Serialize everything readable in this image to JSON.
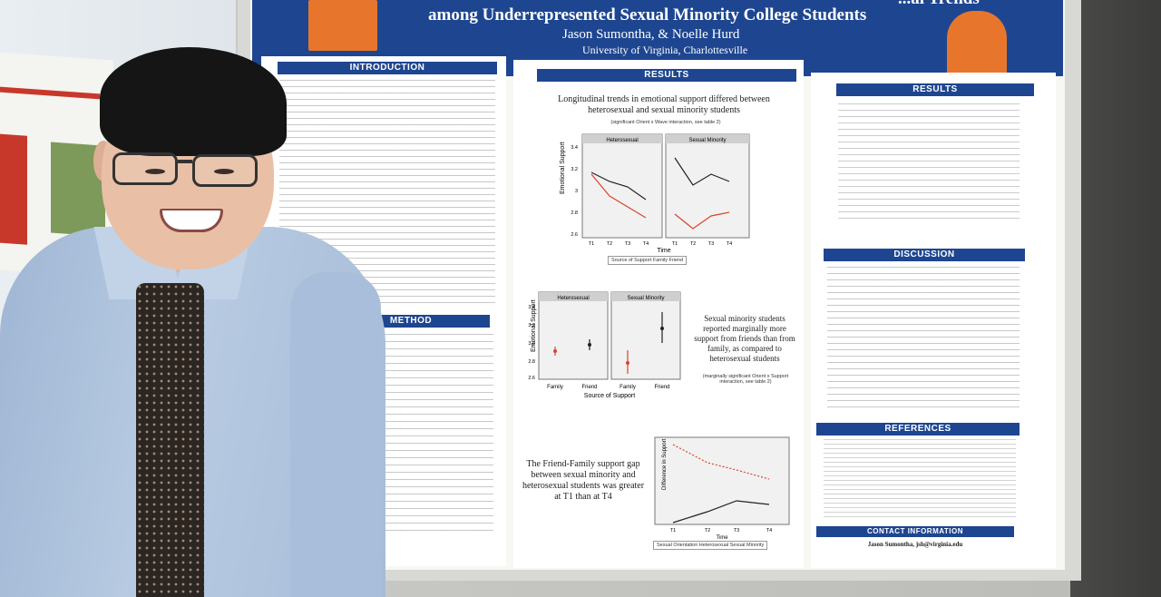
{
  "scene": {
    "description_tag": "photo-of-presenter-with-poster"
  },
  "poster": {
    "title": "among Underrepresented Sexual Minority College Students",
    "title_cut": "...al Trends",
    "authors": "Jason Sumontha, & Noelle Hurd",
    "affiliation": "University of Virginia, Charlottesville",
    "sections": {
      "introduction": "INTRODUCTION",
      "method": "METHOD",
      "results_mid": "RESULTS",
      "results_right": "RESULTS",
      "discussion": "DISCUSSION",
      "references": "REFERENCES",
      "contact": "CONTACT INFORMATION"
    },
    "contact_line": "Jason Sumontha, jsh@virginia.edu",
    "results_caption_1": "Longitudinal trends in emotional support differed between heterosexual and sexual minority students",
    "results_note_1": "(significant Orient x Wave interaction, see table 2)",
    "results_caption_2": "Sexual minority students reported marginally more support from friends than from family, as compared to heterosexual students",
    "results_note_2": "(marginally significant Orient x Support interaction, see table 2)",
    "results_caption_3": "The Friend-Family support gap between sexual minority and heterosexual students was greater at T1 than at T4",
    "chart1": {
      "panels": [
        "Heterosexual",
        "Sexual Minority"
      ],
      "ylabel": "Emotional Support",
      "xlabel": "Time",
      "yticks": [
        "3.4",
        "3.2",
        "3",
        "2.8",
        "2.6"
      ],
      "xticks": [
        "T1",
        "T2",
        "T3",
        "T4",
        "T1",
        "T2",
        "T3",
        "T4"
      ],
      "legend": "Source of Support  Family  Friend"
    },
    "chart2": {
      "panels": [
        "Heterosexual",
        "Sexual Minority"
      ],
      "ylabel": "Emotional Support",
      "xlabel": "Source of Support",
      "yticks": [
        "3.4",
        "3.2",
        "3.0",
        "2.8",
        "2.6"
      ],
      "xticks": [
        "Family",
        "Friend",
        "Family",
        "Friend"
      ]
    },
    "chart3": {
      "ylabel": "Difference in Support",
      "xlabel": "Time",
      "xticks": [
        "T1",
        "T2",
        "T3",
        "T4"
      ],
      "legend": "Sexual Orientation  Heterosexual  Sexual Minority"
    }
  },
  "colors": {
    "banner": "#1e4690",
    "crest": "#e8752c",
    "family_series": "#d9442e",
    "friend_series": "#222222"
  }
}
